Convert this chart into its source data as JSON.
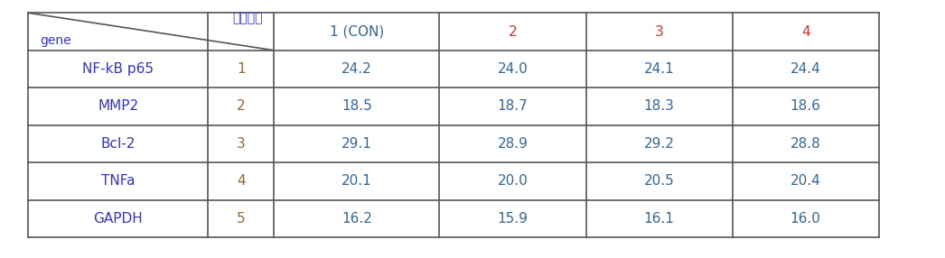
{
  "header_col1": "gene",
  "header_col2": "샘플번호",
  "col_headers": [
    "1 (CON)",
    "2",
    "3",
    "4"
  ],
  "row_labels": [
    "NF-kB p65",
    "MMP2",
    "Bcl-2",
    "TNFa",
    "GAPDH"
  ],
  "row_numbers": [
    "1",
    "2",
    "3",
    "4",
    "5"
  ],
  "table_data": [
    [
      "24.2",
      "24.0",
      "24.1",
      "24.4"
    ],
    [
      "18.5",
      "18.7",
      "18.3",
      "18.6"
    ],
    [
      "29.1",
      "28.9",
      "29.2",
      "28.8"
    ],
    [
      "20.1",
      "20.0",
      "20.5",
      "20.4"
    ],
    [
      "16.2",
      "15.9",
      "16.1",
      "16.0"
    ]
  ],
  "color_gene": "#3333cc",
  "color_number": "#996633",
  "color_col1": "#336699",
  "color_col234": "#cc3333",
  "color_data": "#336699",
  "border_color": "#555555",
  "bg_color": "#ffffff"
}
